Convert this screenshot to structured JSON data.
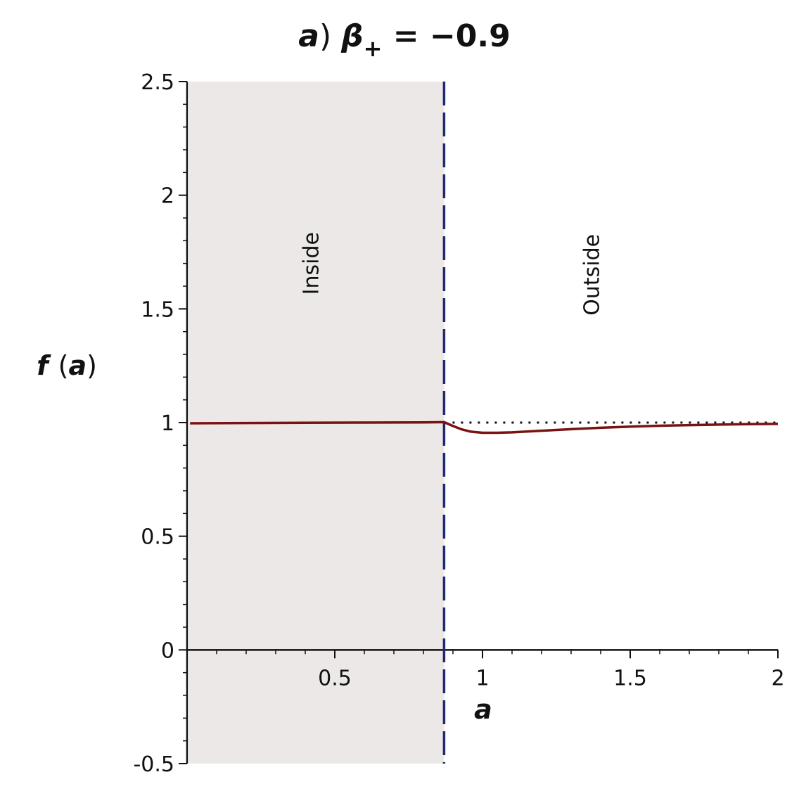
{
  "chart_data": {
    "type": "line",
    "title": "a) β+ = −0.9",
    "title_parts": {
      "a": "a",
      "paren": ")",
      "beta": "β",
      "sub": "+",
      "eq": " = ",
      "value": "−0.9"
    },
    "xlabel": "a",
    "ylabel": "f (a)",
    "ylabel_parts": {
      "f": "f",
      "open": "(",
      "a": "a",
      "close": ")"
    },
    "xlim": [
      0,
      2
    ],
    "ylim": [
      -0.5,
      2.5
    ],
    "x_ticks": [
      0.5,
      1,
      1.5,
      2
    ],
    "x_tick_labels": [
      "0.5",
      "1",
      "1.5",
      "2"
    ],
    "y_ticks": [
      -0.5,
      0,
      0.5,
      1,
      1.5,
      2,
      2.5
    ],
    "y_tick_labels": [
      "-0.5",
      "0",
      "0.5",
      "1",
      "1.5",
      "2",
      "2.5"
    ],
    "x_minor_step": 0.1,
    "y_minor_step": 0.1,
    "grid": false,
    "boundary_x": 0.87,
    "shaded_region": [
      0,
      0.87
    ],
    "regions": [
      {
        "label": "Inside",
        "x": 0.42,
        "y": 1.7
      },
      {
        "label": "Outside",
        "x": 1.37,
        "y": 1.65
      }
    ],
    "reference_line": {
      "y": 1,
      "x_range": [
        0.87,
        2
      ],
      "style": "dotted"
    },
    "series": [
      {
        "x": [
          0.01,
          0.2,
          0.4,
          0.6,
          0.8,
          0.87,
          0.9,
          0.93,
          0.96,
          1.0,
          1.05,
          1.1,
          1.2,
          1.3,
          1.4,
          1.5,
          1.6,
          1.7,
          1.8,
          1.9,
          2.0
        ],
        "y": [
          0.997,
          0.998,
          0.999,
          1.0,
          1.001,
          1.002,
          0.985,
          0.97,
          0.96,
          0.955,
          0.955,
          0.957,
          0.964,
          0.971,
          0.977,
          0.982,
          0.986,
          0.989,
          0.991,
          0.993,
          0.994
        ]
      }
    ],
    "colors": {
      "curve": "#7a1212",
      "boundary": "#1f2a6e",
      "shade": "#ece8e8",
      "reference": "#111111",
      "axis": "#111111"
    }
  }
}
